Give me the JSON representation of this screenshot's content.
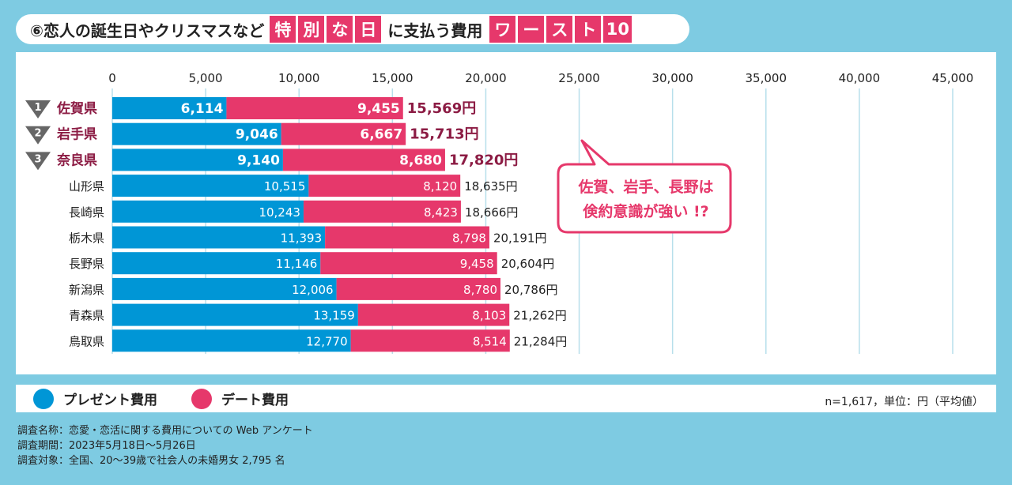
{
  "title": {
    "prefix": "⑥恋人の誕生日やクリスマスなど",
    "box1": [
      "特",
      "別",
      "な",
      "日"
    ],
    "middle": "に支払う費用",
    "box2": [
      "ワ",
      "ー",
      "ス",
      "ト",
      "10"
    ]
  },
  "callout": {
    "line1": "佐賀、岩手、長野は",
    "line2": "倹約意識が強い !?"
  },
  "legend": {
    "present": "プレゼント費用",
    "date": "デート費用"
  },
  "note": "n=1,617，単位：円（平均値）",
  "footer": {
    "line1": "調査名称：恋愛・恋活に関する費用についての Web アンケート",
    "line2": "調査期間：2023年5月18日〜5月26日",
    "line3": "調査対象：全国、20〜39歳で社会人の未婚男女 2,795 名"
  },
  "colors": {
    "present": "#0096d6",
    "date": "#e6386b",
    "rank_text": "#8c1c44",
    "grid": "#b7dfeb",
    "background": "#7ecbe2"
  },
  "chart_data": {
    "type": "bar",
    "orientation": "horizontal",
    "stacked": true,
    "categories": [
      "佐賀県",
      "岩手県",
      "奈良県",
      "山形県",
      "長崎県",
      "栃木県",
      "長野県",
      "新潟県",
      "青森県",
      "鳥取県"
    ],
    "ranks": [
      "1",
      "2",
      "3"
    ],
    "series": [
      {
        "name": "プレゼント費用",
        "values": [
          6114,
          9046,
          9140,
          10515,
          10243,
          11393,
          11146,
          12006,
          13159,
          12770
        ]
      },
      {
        "name": "デート費用",
        "values": [
          9455,
          6667,
          8680,
          8120,
          8423,
          8798,
          9458,
          8780,
          8103,
          8514
        ]
      }
    ],
    "totals": [
      15569,
      15713,
      17820,
      18635,
      18666,
      20191,
      20604,
      20786,
      21262,
      21284
    ],
    "total_suffix": "円",
    "xlim": [
      0,
      45000
    ],
    "xticks": [
      0,
      5000,
      10000,
      15000,
      20000,
      25000,
      30000,
      35000,
      40000,
      45000
    ],
    "grid": true
  }
}
